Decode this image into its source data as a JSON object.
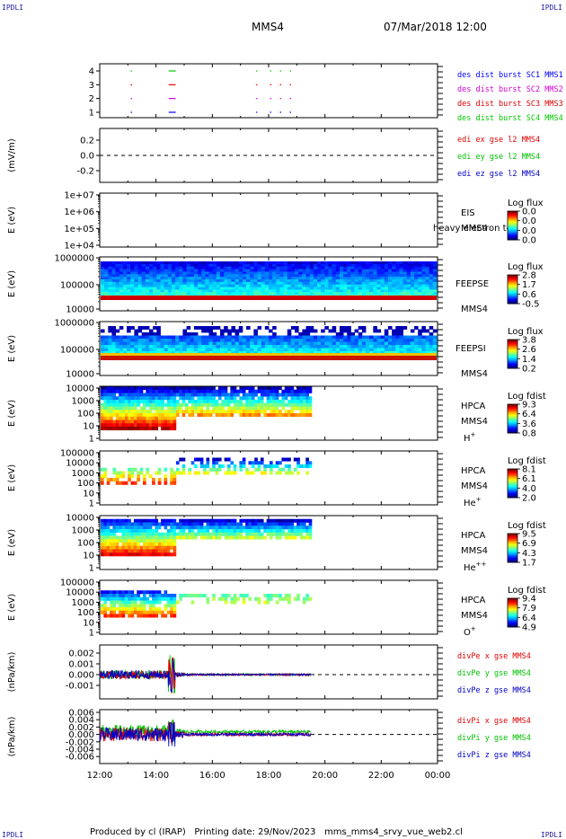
{
  "header": {
    "corner_label": "IPDLI",
    "spacecraft": "MMS4",
    "datetime": "07/Mar/2018 12:00"
  },
  "footer": {
    "produced_by": "Produced by cl (IRAP)",
    "printing_date": "Printing date: 29/Nov/2023",
    "filename": "mms_mms4_srvy_vue_web2.cl"
  },
  "colors": {
    "mms1": "#0000ff",
    "mms2": "#d200d2",
    "mms3": "#e00000",
    "mms4": "#00c800",
    "x": "#e00000",
    "y": "#00c000",
    "z": "#0000c8"
  },
  "chart_data": [
    {
      "type": "scatter",
      "panel": "des_dist_burst",
      "ytick_labels": [
        "4",
        "3",
        "2",
        "1"
      ],
      "legend": [
        "des dist burst SC1 MMS1",
        "des dist burst SC2 MMS2",
        "des dist burst SC3 MMS3",
        "des dist burst SC4 MMS4"
      ],
      "series": [
        {
          "name": "des dist burst SC1 MMS1",
          "y": 1,
          "segments": [
            [
              13.1,
              13.15
            ],
            [
              14.45,
              14.7
            ],
            [
              17.55,
              17.57
            ],
            [
              18.05,
              18.07
            ],
            [
              18.4,
              18.42
            ],
            [
              18.75,
              18.77
            ]
          ]
        },
        {
          "name": "des dist burst SC2 MMS2",
          "y": 2,
          "segments": [
            [
              13.1,
              13.15
            ],
            [
              14.45,
              14.7
            ],
            [
              17.55,
              17.57
            ],
            [
              18.05,
              18.07
            ],
            [
              18.4,
              18.42
            ],
            [
              18.75,
              18.77
            ]
          ]
        },
        {
          "name": "des dist burst SC3 MMS3",
          "y": 3,
          "segments": [
            [
              13.1,
              13.15
            ],
            [
              14.45,
              14.7
            ],
            [
              17.55,
              17.57
            ],
            [
              18.05,
              18.07
            ],
            [
              18.4,
              18.42
            ],
            [
              18.75,
              18.77
            ]
          ]
        },
        {
          "name": "des dist burst SC4 MMS4",
          "y": 4,
          "segments": [
            [
              13.1,
              13.15
            ],
            [
              14.45,
              14.7
            ],
            [
              17.55,
              17.57
            ],
            [
              18.05,
              18.07
            ],
            [
              18.4,
              18.42
            ],
            [
              18.75,
              18.77
            ]
          ]
        }
      ]
    },
    {
      "type": "line",
      "panel": "edi",
      "ylabel": "(mV/m)",
      "ytick_labels": [
        "0.2",
        "0.0",
        "-0.2"
      ],
      "legend": [
        "edi ex gse l2 MMS4",
        "edi ey gse l2 MMS4",
        "edi ez gse l2 MMS4"
      ]
    },
    {
      "type": "heatmap",
      "panel": "eis",
      "ylabel": "E (eV)",
      "ytick_labels": [
        "1e+07",
        "1e+06",
        "1e+05",
        "1e+04"
      ],
      "instrument": "EIS",
      "spacecraft": "MMS4",
      "note": "heavy electron to",
      "colorbar_title": "Log flux",
      "colorbar_ticks": [
        "0.0",
        "0.0",
        "0.0",
        "0.0"
      ]
    },
    {
      "type": "heatmap",
      "panel": "feepse",
      "ylabel": "E (eV)",
      "ytick_labels": [
        "1000000",
        "100000",
        "10000"
      ],
      "instrument": "FEEPSE",
      "spacecraft": "MMS4",
      "colorbar_title": "Log flux",
      "colorbar_ticks": [
        "2.8",
        "1.7",
        "0.6",
        "-0.5"
      ]
    },
    {
      "type": "heatmap",
      "panel": "feepsi",
      "ylabel": "E (eV)",
      "ytick_labels": [
        "1000000",
        "100000",
        "10000"
      ],
      "instrument": "FEEPSI",
      "spacecraft": "MMS4",
      "colorbar_title": "Log flux",
      "colorbar_ticks": [
        "3.8",
        "2.6",
        "1.4",
        "0.2"
      ]
    },
    {
      "type": "heatmap",
      "panel": "hpca_h",
      "ylabel": "E (eV)",
      "ytick_labels": [
        "10000",
        "1000",
        "100",
        "10",
        "1"
      ],
      "instrument": "HPCA",
      "spacecraft": "MMS4",
      "species": "H",
      "species_charge": "+",
      "colorbar_title": "Log fdist",
      "colorbar_ticks": [
        "9.3",
        "6.4",
        "3.6",
        "0.8"
      ]
    },
    {
      "type": "heatmap",
      "panel": "hpca_he1",
      "ylabel": "E (eV)",
      "ytick_labels": [
        "100000",
        "10000",
        "1000",
        "100",
        "10",
        "1"
      ],
      "instrument": "HPCA",
      "spacecraft": "MMS4",
      "species": "He",
      "species_charge": "+",
      "colorbar_title": "Log fdist",
      "colorbar_ticks": [
        "8.1",
        "6.1",
        "4.0",
        "2.0"
      ]
    },
    {
      "type": "heatmap",
      "panel": "hpca_he2",
      "ylabel": "E (eV)",
      "ytick_labels": [
        "10000",
        "1000",
        "100",
        "10",
        "1"
      ],
      "instrument": "HPCA",
      "spacecraft": "MMS4",
      "species": "He",
      "species_charge": "++",
      "colorbar_title": "Log fdist",
      "colorbar_ticks": [
        "9.5",
        "6.9",
        "4.3",
        "1.7"
      ]
    },
    {
      "type": "heatmap",
      "panel": "hpca_o",
      "ylabel": "E (eV)",
      "ytick_labels": [
        "100000",
        "10000",
        "1000",
        "100",
        "10",
        "1"
      ],
      "instrument": "HPCA",
      "spacecraft": "MMS4",
      "species": "O",
      "species_charge": "+",
      "colorbar_title": "Log fdist",
      "colorbar_ticks": [
        "9.4",
        "7.9",
        "6.4",
        "4.9"
      ]
    },
    {
      "type": "line",
      "panel": "divpe",
      "ylabel": "(nPa/km)",
      "ytick_labels": [
        "0.002",
        "0.001",
        "0.000",
        "-0.001"
      ],
      "legend": [
        "divPe x gse MMS4",
        "divPe y gse MMS4",
        "divPe z gse MMS4"
      ]
    },
    {
      "type": "line",
      "panel": "divpi",
      "ylabel": "(nPa/km)",
      "ytick_labels": [
        "0.006",
        "0.004",
        "0.002",
        "0.000",
        "-0.002",
        "-0.004",
        "-0.006"
      ],
      "legend": [
        "divPi x gse MMS4",
        "divPi y gse MMS4",
        "divPi z gse MMS4"
      ]
    }
  ],
  "xaxis": {
    "tick_labels": [
      "12:00",
      "14:00",
      "16:00",
      "18:00",
      "20:00",
      "22:00",
      "00:00"
    ],
    "range_hours": [
      12,
      24
    ],
    "data_end_hour": 19.5
  }
}
